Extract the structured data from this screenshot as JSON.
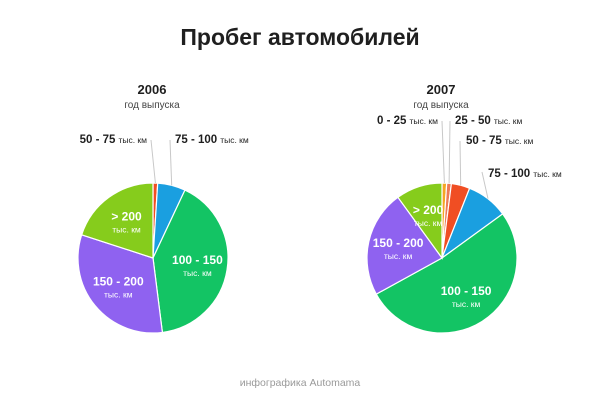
{
  "title": "Пробег автомобилей",
  "footer": "инфографика Automama",
  "chart_data": [
    {
      "type": "pie",
      "title": "2006",
      "subtitle": "год выпуска",
      "unit": "тыс. км",
      "slices": [
        {
          "label": "50 - 75",
          "value": 1,
          "color": "#f04e23"
        },
        {
          "label": "75 - 100",
          "value": 6,
          "color": "#1a9fe0"
        },
        {
          "label": "100 - 150",
          "value": 41,
          "color": "#13c464"
        },
        {
          "label": "150 - 200",
          "value": 32,
          "color": "#8f62f0"
        },
        {
          "label": "> 200",
          "value": 20,
          "color": "#86cc1c"
        }
      ]
    },
    {
      "type": "pie",
      "title": "2007",
      "subtitle": "год выпуска",
      "unit": "тыс. км",
      "slices": [
        {
          "label": "0 - 25",
          "value": 1,
          "color": "#f5a623"
        },
        {
          "label": "25 - 50",
          "value": 1,
          "color": "#ee7a56"
        },
        {
          "label": "50 - 75",
          "value": 4,
          "color": "#f04e23"
        },
        {
          "label": "75 - 100",
          "value": 9,
          "color": "#1a9fe0"
        },
        {
          "label": "100 - 150",
          "value": 52,
          "color": "#13c464"
        },
        {
          "label": "150 - 200",
          "value": 23,
          "color": "#8f62f0"
        },
        {
          "label": "> 200",
          "value": 10,
          "color": "#86cc1c"
        }
      ]
    }
  ]
}
